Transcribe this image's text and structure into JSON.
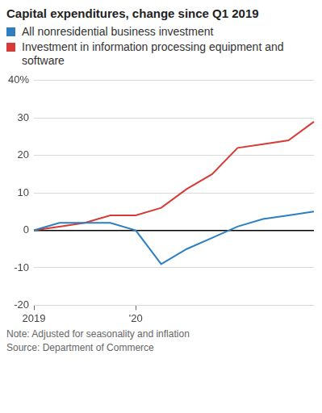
{
  "chart_data": {
    "type": "line",
    "title": "Capital expenditures, change since Q1 2019",
    "categories": [
      "2019",
      null,
      null,
      null,
      "'20",
      null,
      null,
      null,
      null,
      null,
      null,
      null
    ],
    "series": [
      {
        "name": "All nonresidential business investment",
        "color": "#2e7fc0",
        "values": [
          0,
          2,
          2,
          2,
          0,
          -9,
          -5,
          -2,
          1,
          3,
          4,
          5
        ]
      },
      {
        "name": "Investment in information processing equipment and software",
        "color": "#d63b35",
        "values": [
          0,
          1,
          2,
          4,
          4,
          6,
          11,
          15,
          22,
          23,
          24,
          29
        ]
      }
    ],
    "ylim": [
      -20,
      40
    ],
    "yticks": [
      -20,
      -10,
      0,
      10,
      20,
      30,
      {
        "value": 40,
        "label": "40%"
      }
    ],
    "grid": true,
    "note": "Note: Adjusted for seasonality and inflation",
    "source": "Source: Department of Commerce"
  }
}
